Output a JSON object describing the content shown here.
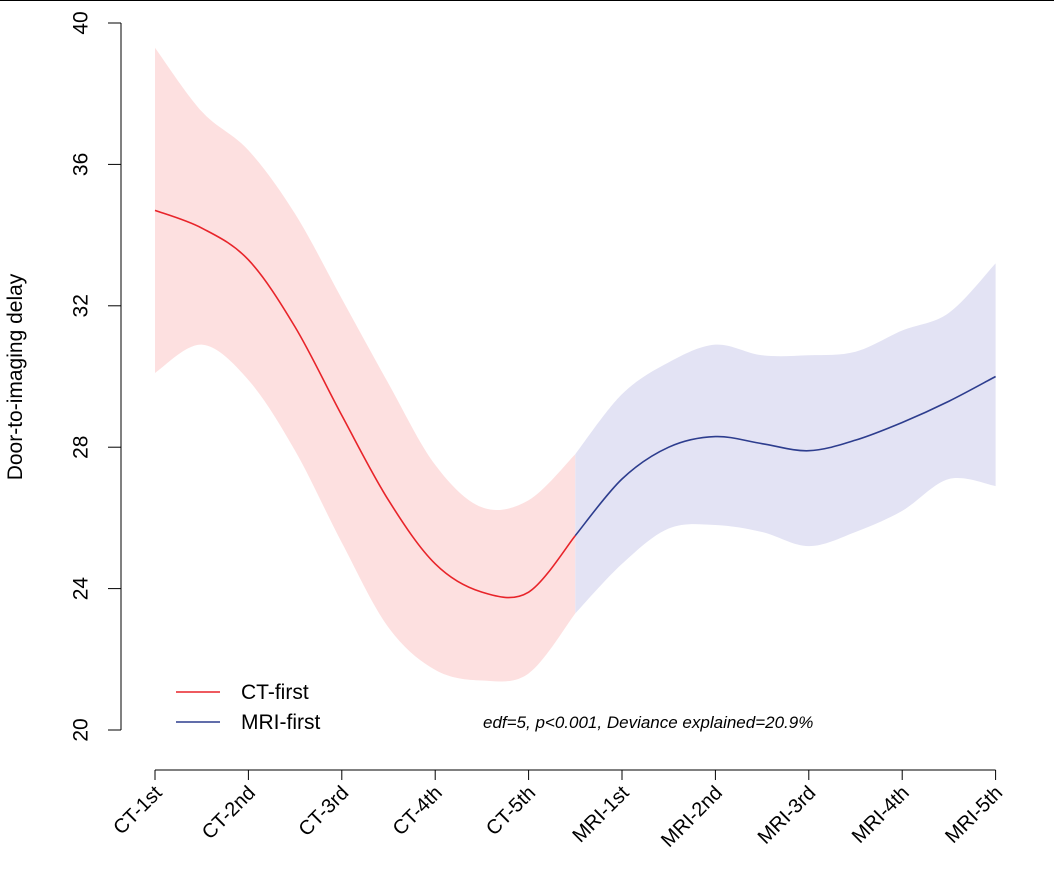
{
  "chart_data": {
    "type": "line",
    "ylabel": "Door-to-imaging delay",
    "xlabel": "",
    "ylim": [
      20,
      40
    ],
    "yticks": [
      20,
      24,
      28,
      32,
      36,
      40
    ],
    "categories": [
      "CT-1st",
      "CT-2nd",
      "CT-3rd",
      "CT-4th",
      "CT-5th",
      "MRI-1st",
      "MRI-2nd",
      "MRI-3rd",
      "MRI-4th",
      "MRI-5th"
    ],
    "annotation": "edf=5, p<0.001, Deviance explained=20.9%",
    "legend": {
      "placement": "bottom-left",
      "entries": [
        "CT-first",
        "MRI-first"
      ]
    },
    "grid": false,
    "series": [
      {
        "name": "CT-first",
        "color": "#e8242a",
        "band_color": "#fde0e0",
        "x": [
          0,
          0.5,
          1,
          1.5,
          2,
          2.5,
          3,
          3.5,
          4,
          4.5
        ],
        "y": [
          34.7,
          34.2,
          33.3,
          31.4,
          28.9,
          26.5,
          24.7,
          23.9,
          23.9,
          25.5
        ],
        "lower": [
          30.1,
          30.9,
          29.9,
          27.9,
          25.3,
          22.9,
          21.7,
          21.4,
          21.6,
          23.3
        ],
        "upper": [
          39.3,
          37.5,
          36.4,
          34.6,
          32.2,
          29.8,
          27.5,
          26.3,
          26.5,
          27.8
        ]
      },
      {
        "name": "MRI-first",
        "color": "#2d3d8e",
        "band_color": "#e3e3f4",
        "x": [
          4.5,
          5,
          5.5,
          6,
          6.5,
          7,
          7.5,
          8,
          8.5,
          9
        ],
        "y": [
          25.5,
          27.1,
          28.0,
          28.3,
          28.1,
          27.9,
          28.2,
          28.7,
          29.3,
          30.0
        ],
        "lower": [
          23.3,
          24.7,
          25.7,
          25.8,
          25.6,
          25.2,
          25.6,
          26.2,
          27.1,
          26.9
        ],
        "upper": [
          27.8,
          29.5,
          30.4,
          30.9,
          30.6,
          30.6,
          30.7,
          31.3,
          31.8,
          33.2
        ]
      }
    ]
  }
}
